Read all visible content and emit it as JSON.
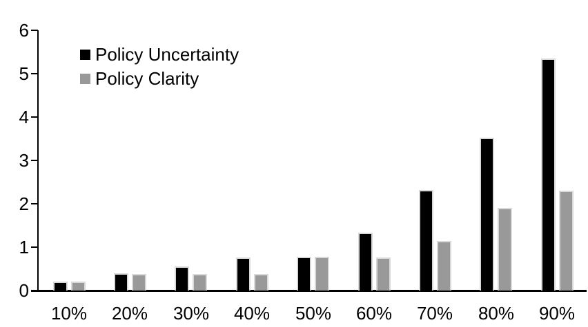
{
  "chart_data": {
    "type": "bar",
    "title": "",
    "xlabel": "",
    "ylabel": "",
    "categories": [
      "10%",
      "20%",
      "30%",
      "40%",
      "50%",
      "60%",
      "70%",
      "80%",
      "90%"
    ],
    "series": [
      {
        "name": "Policy Uncertainty",
        "color": "#000000",
        "values": [
          0.2,
          0.39,
          0.56,
          0.76,
          0.77,
          1.34,
          2.32,
          3.52,
          5.35
        ]
      },
      {
        "name": "Policy Clarity",
        "color": "#999999",
        "values": [
          0.2,
          0.38,
          0.38,
          0.38,
          0.77,
          0.76,
          1.14,
          1.9,
          2.3
        ]
      }
    ],
    "ylim": [
      0,
      6
    ],
    "yticks": [
      "0",
      "1",
      "2",
      "3",
      "4",
      "5",
      "6"
    ],
    "grid": false,
    "legend_position": "upper-left-inside",
    "axis_color": "#000000",
    "background": "#ffffff"
  }
}
